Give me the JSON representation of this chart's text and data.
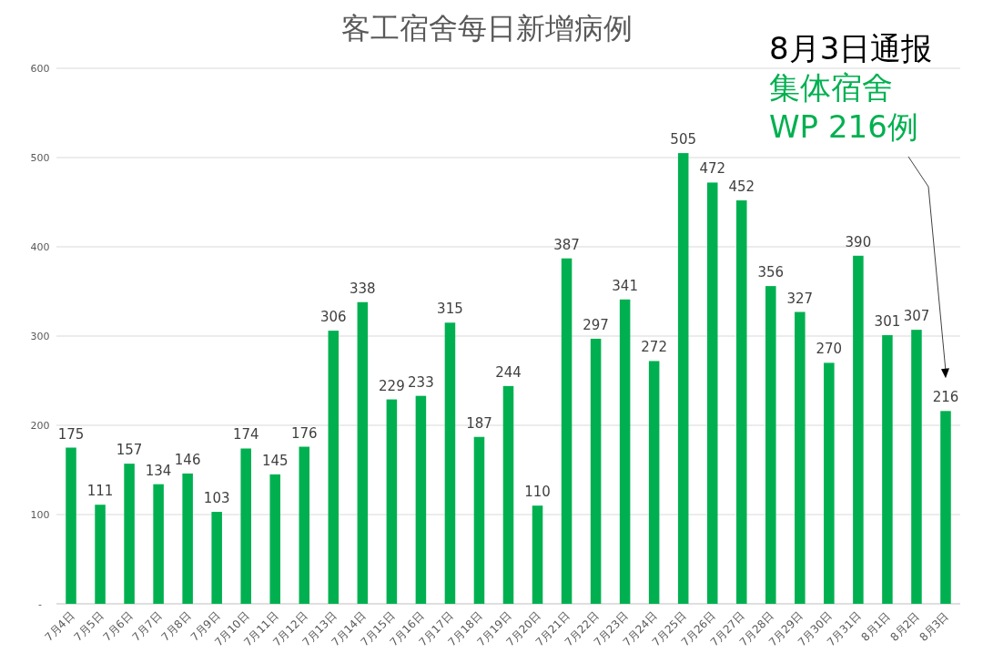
{
  "chart_data": {
    "type": "bar",
    "title": "客工宿舍每日新增病例",
    "categories": [
      "7月4日",
      "7月5日",
      "7月6日",
      "7月7日",
      "7月8日",
      "7月9日",
      "7月10日",
      "7月11日",
      "7月12日",
      "7月13日",
      "7月14日",
      "7月15日",
      "7月16日",
      "7月17日",
      "7月18日",
      "7月19日",
      "7月20日",
      "7月21日",
      "7月22日",
      "7月23日",
      "7月24日",
      "7月25日",
      "7月26日",
      "7月27日",
      "7月28日",
      "7月29日",
      "7月30日",
      "7月31日",
      "8月1日",
      "8月2日",
      "8月3日"
    ],
    "values": [
      175,
      111,
      157,
      134,
      146,
      103,
      174,
      145,
      176,
      306,
      338,
      229,
      233,
      315,
      187,
      244,
      110,
      387,
      297,
      341,
      272,
      505,
      472,
      452,
      356,
      327,
      270,
      390,
      301,
      307,
      216
    ],
    "color": "#00b050",
    "data_labels": true,
    "grid": "y",
    "ylim": [
      0,
      600
    ],
    "yticks": [
      {
        "value": 0,
        "label": "-"
      },
      100,
      200,
      300,
      400,
      500,
      600
    ],
    "annotations": [
      "8月3日通报",
      "集体宿舍",
      "WP 216例"
    ]
  }
}
